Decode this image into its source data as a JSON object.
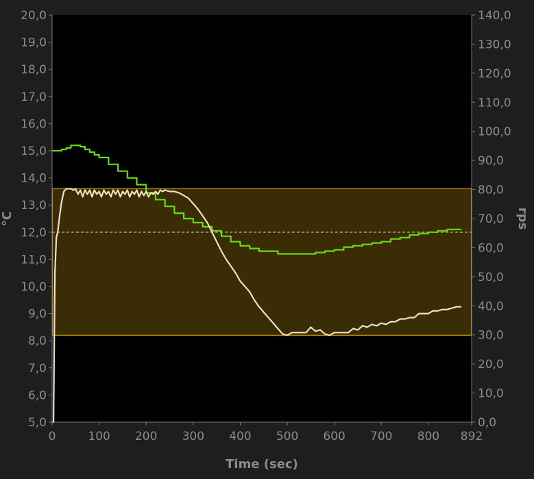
{
  "chart_data": {
    "type": "line",
    "xlabel": "Time (sec)",
    "ylabel_left": "°C",
    "ylabel_right": "rps",
    "xlim": [
      0,
      892
    ],
    "ylim_left": [
      5.0,
      20.0
    ],
    "ylim_right": [
      0.0,
      140.0
    ],
    "x_ticks": [
      "0",
      "100",
      "200",
      "300",
      "400",
      "500",
      "600",
      "700",
      "800",
      "892"
    ],
    "x_tick_values": [
      0,
      100,
      200,
      300,
      400,
      500,
      600,
      700,
      800,
      892
    ],
    "y_left_ticks": [
      "5,0",
      "6,0",
      "7,0",
      "8,0",
      "9,0",
      "10,0",
      "11,0",
      "12,0",
      "13,0",
      "14,0",
      "15,0",
      "16,0",
      "17,0",
      "18,0",
      "19,0",
      "20,0"
    ],
    "y_left_tick_values": [
      5,
      6,
      7,
      8,
      9,
      10,
      11,
      12,
      13,
      14,
      15,
      16,
      17,
      18,
      19,
      20
    ],
    "y_right_ticks": [
      "0,0",
      "10,0",
      "20,0",
      "30,0",
      "40,0",
      "50,0",
      "60,0",
      "70,0",
      "80,0",
      "90,0",
      "100,0",
      "110,0",
      "120,0",
      "130,0",
      "140,0"
    ],
    "y_right_tick_values": [
      0,
      10,
      20,
      30,
      40,
      50,
      60,
      70,
      80,
      90,
      100,
      110,
      120,
      130,
      140
    ],
    "band": {
      "axis": "left",
      "from": 8.2,
      "to": 13.6,
      "fill": "#3a2c05",
      "stroke": "#c8960a"
    },
    "reference_line": {
      "axis": "left",
      "value": 12.0,
      "color": "#e8e0c8",
      "style": "dashed"
    },
    "grid": false,
    "series": [
      {
        "axis": "left",
        "color": "#66dd11",
        "step": true,
        "x": [
          0,
          10,
          20,
          30,
          40,
          50,
          60,
          70,
          80,
          90,
          100,
          120,
          140,
          160,
          180,
          200,
          220,
          240,
          260,
          280,
          300,
          320,
          340,
          360,
          380,
          400,
          420,
          440,
          460,
          480,
          500,
          520,
          540,
          560,
          580,
          600,
          620,
          640,
          660,
          680,
          700,
          720,
          740,
          760,
          780,
          800,
          820,
          840,
          870
        ],
        "values": [
          15.0,
          15.0,
          15.05,
          15.1,
          15.2,
          15.2,
          15.15,
          15.05,
          14.95,
          14.85,
          14.75,
          14.5,
          14.25,
          14.0,
          13.75,
          13.45,
          13.2,
          12.95,
          12.7,
          12.5,
          12.35,
          12.2,
          12.05,
          11.85,
          11.65,
          11.5,
          11.4,
          11.3,
          11.3,
          11.2,
          11.2,
          11.2,
          11.2,
          11.25,
          11.3,
          11.35,
          11.45,
          11.5,
          11.55,
          11.6,
          11.65,
          11.75,
          11.8,
          11.9,
          11.95,
          12.0,
          12.05,
          12.1,
          12.1
        ]
      },
      {
        "axis": "left",
        "color": "#ece3c4",
        "step": false,
        "x": [
          0,
          3,
          6,
          9,
          12,
          16,
          20,
          25,
          30,
          35,
          40,
          45,
          50,
          55,
          60,
          65,
          70,
          75,
          80,
          85,
          90,
          95,
          100,
          105,
          110,
          115,
          120,
          125,
          130,
          135,
          140,
          145,
          150,
          155,
          160,
          165,
          170,
          175,
          180,
          185,
          190,
          195,
          200,
          205,
          210,
          215,
          220,
          225,
          230,
          235,
          240,
          250,
          260,
          270,
          280,
          290,
          300,
          310,
          320,
          330,
          340,
          350,
          360,
          370,
          380,
          390,
          400,
          410,
          420,
          430,
          440,
          450,
          460,
          470,
          480,
          490,
          500,
          510,
          520,
          530,
          540,
          550,
          560,
          570,
          580,
          590,
          600,
          610,
          620,
          630,
          640,
          650,
          660,
          670,
          680,
          690,
          700,
          710,
          720,
          730,
          740,
          750,
          760,
          770,
          780,
          790,
          800,
          810,
          820,
          830,
          840,
          850,
          860,
          870
        ],
        "values": [
          5.0,
          5.0,
          10.5,
          11.8,
          12.0,
          12.6,
          13.1,
          13.5,
          13.6,
          13.6,
          13.6,
          13.55,
          13.6,
          13.4,
          13.55,
          13.3,
          13.55,
          13.4,
          13.55,
          13.3,
          13.55,
          13.4,
          13.5,
          13.3,
          13.55,
          13.4,
          13.5,
          13.3,
          13.55,
          13.4,
          13.55,
          13.3,
          13.5,
          13.4,
          13.55,
          13.3,
          13.5,
          13.4,
          13.55,
          13.3,
          13.5,
          13.35,
          13.5,
          13.3,
          13.45,
          13.4,
          13.5,
          13.4,
          13.55,
          13.5,
          13.55,
          13.5,
          13.5,
          13.45,
          13.35,
          13.25,
          13.05,
          12.85,
          12.6,
          12.35,
          12.0,
          11.65,
          11.3,
          11.0,
          10.75,
          10.5,
          10.2,
          10.0,
          9.8,
          9.5,
          9.25,
          9.05,
          8.85,
          8.65,
          8.45,
          8.25,
          8.2,
          8.3,
          8.3,
          8.3,
          8.3,
          8.5,
          8.35,
          8.4,
          8.25,
          8.2,
          8.3,
          8.3,
          8.3,
          8.3,
          8.45,
          8.4,
          8.55,
          8.5,
          8.6,
          8.55,
          8.65,
          8.6,
          8.7,
          8.7,
          8.8,
          8.8,
          8.85,
          8.85,
          9.0,
          9.0,
          9.0,
          9.1,
          9.1,
          9.15,
          9.15,
          9.2,
          9.25,
          9.25
        ]
      }
    ]
  }
}
